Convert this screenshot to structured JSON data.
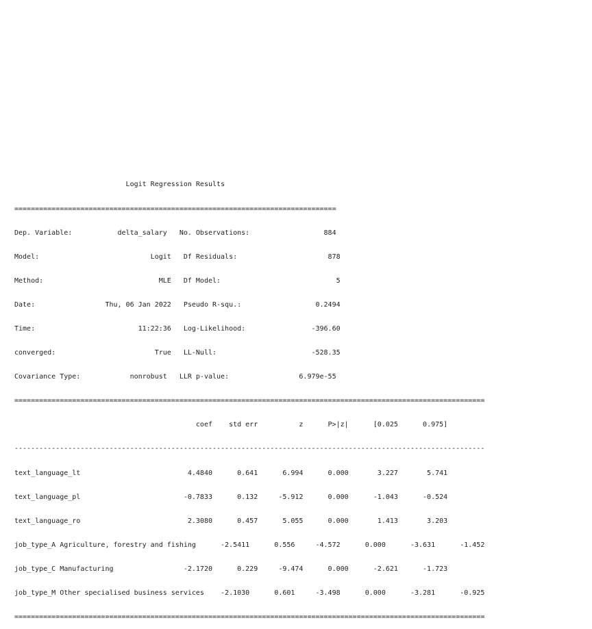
{
  "report": {
    "title": "Logit Regression Results",
    "rule_double_short": "==============================================================================",
    "rule_double_long": "==================================================================================================================",
    "rule_single_long": "------------------------------------------------------------------------------------------------------------------",
    "summary_rows": [
      "Dep. Variable:           delta_salary   No. Observations:                  884",
      "Model:                           Logit   Df Residuals:                      878",
      "Method:                            MLE   Df Model:                            5",
      "Date:                 Thu, 06 Jan 2022   Pseudo R-squ.:                  0.2494",
      "Time:                         11:22:36   Log-Likelihood:                -396.60",
      "converged:                        True   LL-Null:                       -528.35",
      "Covariance Type:            nonrobust   LLR p-value:                 6.979e-55"
    ],
    "coef_header": "                                            coef    std err          z      P>|z|      [0.025      0.975]",
    "coef_rows": [
      "text_language_lt                          4.4840      0.641      6.994      0.000       3.227       5.741",
      "text_language_pl                         -0.7833      0.132     -5.912      0.000      -1.043      -0.524",
      "text_language_ro                          2.3080      0.457      5.055      0.000       1.413       3.203",
      "job_type_A Agriculture, forestry and fishing      -2.5411      0.556     -4.572      0.000      -3.631      -1.452",
      "job_type_C Manufacturing                 -2.1720      0.229     -9.474      0.000      -2.621      -1.723",
      "job_type_M Other specialised business services    -2.1030      0.601     -3.498      0.000      -3.281      -0.925"
    ]
  }
}
